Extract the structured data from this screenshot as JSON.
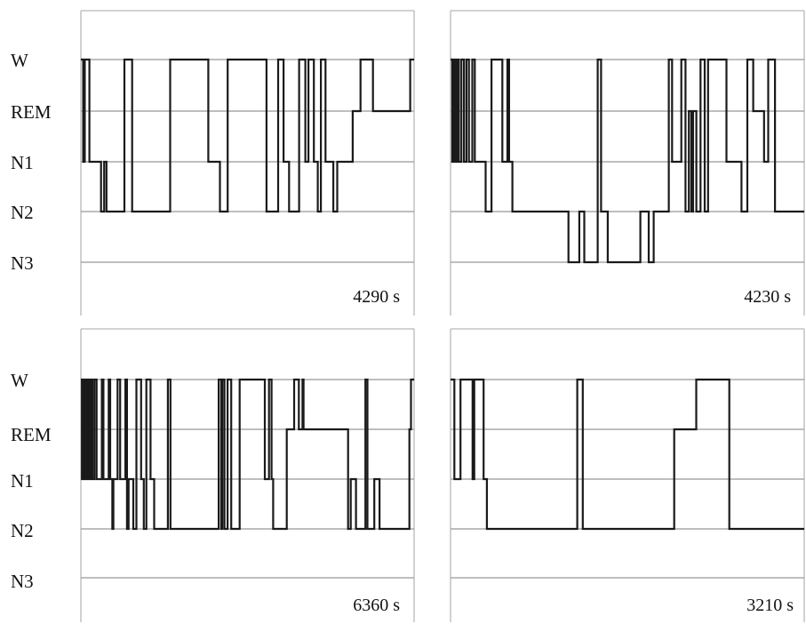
{
  "chart_data": [
    {
      "type": "line",
      "panel": "top-left",
      "y_categories": [
        "W",
        "REM",
        "N1",
        "N2",
        "N3"
      ],
      "duration_label": "4290 s",
      "x_unit": "s",
      "xlim": [
        0,
        4290
      ],
      "grid": true,
      "steps": [
        {
          "t": 0,
          "stage": "W"
        },
        {
          "t": 30,
          "stage": "N1"
        },
        {
          "t": 50,
          "stage": "W"
        },
        {
          "t": 110,
          "stage": "N1"
        },
        {
          "t": 260,
          "stage": "N2"
        },
        {
          "t": 300,
          "stage": "N1"
        },
        {
          "t": 330,
          "stage": "N2"
        },
        {
          "t": 560,
          "stage": "W"
        },
        {
          "t": 660,
          "stage": "N2"
        },
        {
          "t": 1150,
          "stage": "W"
        },
        {
          "t": 1640,
          "stage": "N1"
        },
        {
          "t": 1790,
          "stage": "N2"
        },
        {
          "t": 1890,
          "stage": "W"
        },
        {
          "t": 2390,
          "stage": "N2"
        },
        {
          "t": 2540,
          "stage": "W"
        },
        {
          "t": 2610,
          "stage": "N1"
        },
        {
          "t": 2680,
          "stage": "N2"
        },
        {
          "t": 2810,
          "stage": "W"
        },
        {
          "t": 2890,
          "stage": "N1"
        },
        {
          "t": 2930,
          "stage": "W"
        },
        {
          "t": 3000,
          "stage": "N1"
        },
        {
          "t": 3050,
          "stage": "N2"
        },
        {
          "t": 3090,
          "stage": "W"
        },
        {
          "t": 3150,
          "stage": "N1"
        },
        {
          "t": 3250,
          "stage": "N2"
        },
        {
          "t": 3300,
          "stage": "N1"
        },
        {
          "t": 3500,
          "stage": "REM"
        },
        {
          "t": 3600,
          "stage": "W"
        },
        {
          "t": 3760,
          "stage": "REM"
        },
        {
          "t": 4240,
          "stage": "W"
        }
      ]
    },
    {
      "type": "line",
      "panel": "top-right",
      "y_categories": [
        "W",
        "REM",
        "N1",
        "N2",
        "N3"
      ],
      "duration_label": "4230 s",
      "x_unit": "s",
      "xlim": [
        0,
        4230
      ],
      "grid": true,
      "steps": [
        {
          "t": 0,
          "stage": "W"
        },
        {
          "t": 20,
          "stage": "N1"
        },
        {
          "t": 40,
          "stage": "W"
        },
        {
          "t": 60,
          "stage": "N1"
        },
        {
          "t": 80,
          "stage": "W"
        },
        {
          "t": 100,
          "stage": "N1"
        },
        {
          "t": 130,
          "stage": "W"
        },
        {
          "t": 160,
          "stage": "N1"
        },
        {
          "t": 190,
          "stage": "W"
        },
        {
          "t": 220,
          "stage": "N1"
        },
        {
          "t": 260,
          "stage": "W"
        },
        {
          "t": 290,
          "stage": "N1"
        },
        {
          "t": 420,
          "stage": "N2"
        },
        {
          "t": 490,
          "stage": "W"
        },
        {
          "t": 620,
          "stage": "N1"
        },
        {
          "t": 680,
          "stage": "W"
        },
        {
          "t": 700,
          "stage": "N1"
        },
        {
          "t": 740,
          "stage": "N2"
        },
        {
          "t": 1410,
          "stage": "N3"
        },
        {
          "t": 1540,
          "stage": "N2"
        },
        {
          "t": 1600,
          "stage": "N3"
        },
        {
          "t": 1760,
          "stage": "W"
        },
        {
          "t": 1800,
          "stage": "N2"
        },
        {
          "t": 1880,
          "stage": "N3"
        },
        {
          "t": 2270,
          "stage": "N2"
        },
        {
          "t": 2370,
          "stage": "N3"
        },
        {
          "t": 2430,
          "stage": "N2"
        },
        {
          "t": 2610,
          "stage": "W"
        },
        {
          "t": 2650,
          "stage": "N1"
        },
        {
          "t": 2760,
          "stage": "W"
        },
        {
          "t": 2810,
          "stage": "N2"
        },
        {
          "t": 2850,
          "stage": "REM"
        },
        {
          "t": 2880,
          "stage": "N2"
        },
        {
          "t": 2900,
          "stage": "REM"
        },
        {
          "t": 2940,
          "stage": "N2"
        },
        {
          "t": 2990,
          "stage": "W"
        },
        {
          "t": 3040,
          "stage": "N2"
        },
        {
          "t": 3080,
          "stage": "W"
        },
        {
          "t": 3300,
          "stage": "N1"
        },
        {
          "t": 3480,
          "stage": "N2"
        },
        {
          "t": 3550,
          "stage": "W"
        },
        {
          "t": 3620,
          "stage": "REM"
        },
        {
          "t": 3750,
          "stage": "N1"
        },
        {
          "t": 3800,
          "stage": "W"
        },
        {
          "t": 3880,
          "stage": "N2"
        }
      ]
    },
    {
      "type": "line",
      "panel": "bottom-left",
      "y_categories": [
        "W",
        "REM",
        "N1",
        "N2",
        "N3"
      ],
      "duration_label": "6360 s",
      "x_unit": "s",
      "xlim": [
        0,
        6360
      ],
      "grid": true,
      "steps": [
        {
          "t": 0,
          "stage": "W"
        },
        {
          "t": 20,
          "stage": "N1"
        },
        {
          "t": 40,
          "stage": "W"
        },
        {
          "t": 60,
          "stage": "N1"
        },
        {
          "t": 80,
          "stage": "W"
        },
        {
          "t": 100,
          "stage": "N1"
        },
        {
          "t": 130,
          "stage": "W"
        },
        {
          "t": 160,
          "stage": "N1"
        },
        {
          "t": 190,
          "stage": "W"
        },
        {
          "t": 220,
          "stage": "N1"
        },
        {
          "t": 260,
          "stage": "W"
        },
        {
          "t": 300,
          "stage": "N1"
        },
        {
          "t": 400,
          "stage": "W"
        },
        {
          "t": 430,
          "stage": "N1"
        },
        {
          "t": 530,
          "stage": "W"
        },
        {
          "t": 560,
          "stage": "N1"
        },
        {
          "t": 600,
          "stage": "N2"
        },
        {
          "t": 620,
          "stage": "N1"
        },
        {
          "t": 700,
          "stage": "W"
        },
        {
          "t": 750,
          "stage": "N1"
        },
        {
          "t": 850,
          "stage": "W"
        },
        {
          "t": 880,
          "stage": "N2"
        },
        {
          "t": 910,
          "stage": "N1"
        },
        {
          "t": 1000,
          "stage": "N2"
        },
        {
          "t": 1060,
          "stage": "W"
        },
        {
          "t": 1150,
          "stage": "N1"
        },
        {
          "t": 1200,
          "stage": "N2"
        },
        {
          "t": 1250,
          "stage": "W"
        },
        {
          "t": 1330,
          "stage": "N1"
        },
        {
          "t": 1400,
          "stage": "N2"
        },
        {
          "t": 1660,
          "stage": "W"
        },
        {
          "t": 1710,
          "stage": "N2"
        },
        {
          "t": 2630,
          "stage": "W"
        },
        {
          "t": 2680,
          "stage": "N2"
        },
        {
          "t": 2700,
          "stage": "W"
        },
        {
          "t": 2740,
          "stage": "N2"
        },
        {
          "t": 2800,
          "stage": "W"
        },
        {
          "t": 2870,
          "stage": "N2"
        },
        {
          "t": 3030,
          "stage": "W"
        },
        {
          "t": 3510,
          "stage": "N1"
        },
        {
          "t": 3590,
          "stage": "W"
        },
        {
          "t": 3640,
          "stage": "N1"
        },
        {
          "t": 3670,
          "stage": "N2"
        },
        {
          "t": 3930,
          "stage": "REM"
        },
        {
          "t": 4070,
          "stage": "W"
        },
        {
          "t": 4160,
          "stage": "REM"
        },
        {
          "t": 4230,
          "stage": "W"
        },
        {
          "t": 4250,
          "stage": "REM"
        },
        {
          "t": 4560,
          "stage": "REM"
        },
        {
          "t": 5100,
          "stage": "N2"
        },
        {
          "t": 5150,
          "stage": "N1"
        },
        {
          "t": 5250,
          "stage": "N2"
        },
        {
          "t": 5430,
          "stage": "W"
        },
        {
          "t": 5470,
          "stage": "N2"
        },
        {
          "t": 5600,
          "stage": "N1"
        },
        {
          "t": 5700,
          "stage": "N2"
        },
        {
          "t": 6270,
          "stage": "REM"
        },
        {
          "t": 6300,
          "stage": "W"
        }
      ]
    },
    {
      "type": "line",
      "panel": "bottom-right",
      "y_categories": [
        "W",
        "REM",
        "N1",
        "N2",
        "N3"
      ],
      "duration_label": "3210 s",
      "x_unit": "s",
      "xlim": [
        0,
        3210
      ],
      "grid": true,
      "steps": [
        {
          "t": 0,
          "stage": "W"
        },
        {
          "t": 35,
          "stage": "N1"
        },
        {
          "t": 90,
          "stage": "W"
        },
        {
          "t": 200,
          "stage": "N1"
        },
        {
          "t": 215,
          "stage": "W"
        },
        {
          "t": 300,
          "stage": "N1"
        },
        {
          "t": 330,
          "stage": "N2"
        },
        {
          "t": 1150,
          "stage": "W"
        },
        {
          "t": 1200,
          "stage": "N2"
        },
        {
          "t": 2030,
          "stage": "REM"
        },
        {
          "t": 2230,
          "stage": "W"
        },
        {
          "t": 2530,
          "stage": "N2"
        }
      ]
    }
  ]
}
